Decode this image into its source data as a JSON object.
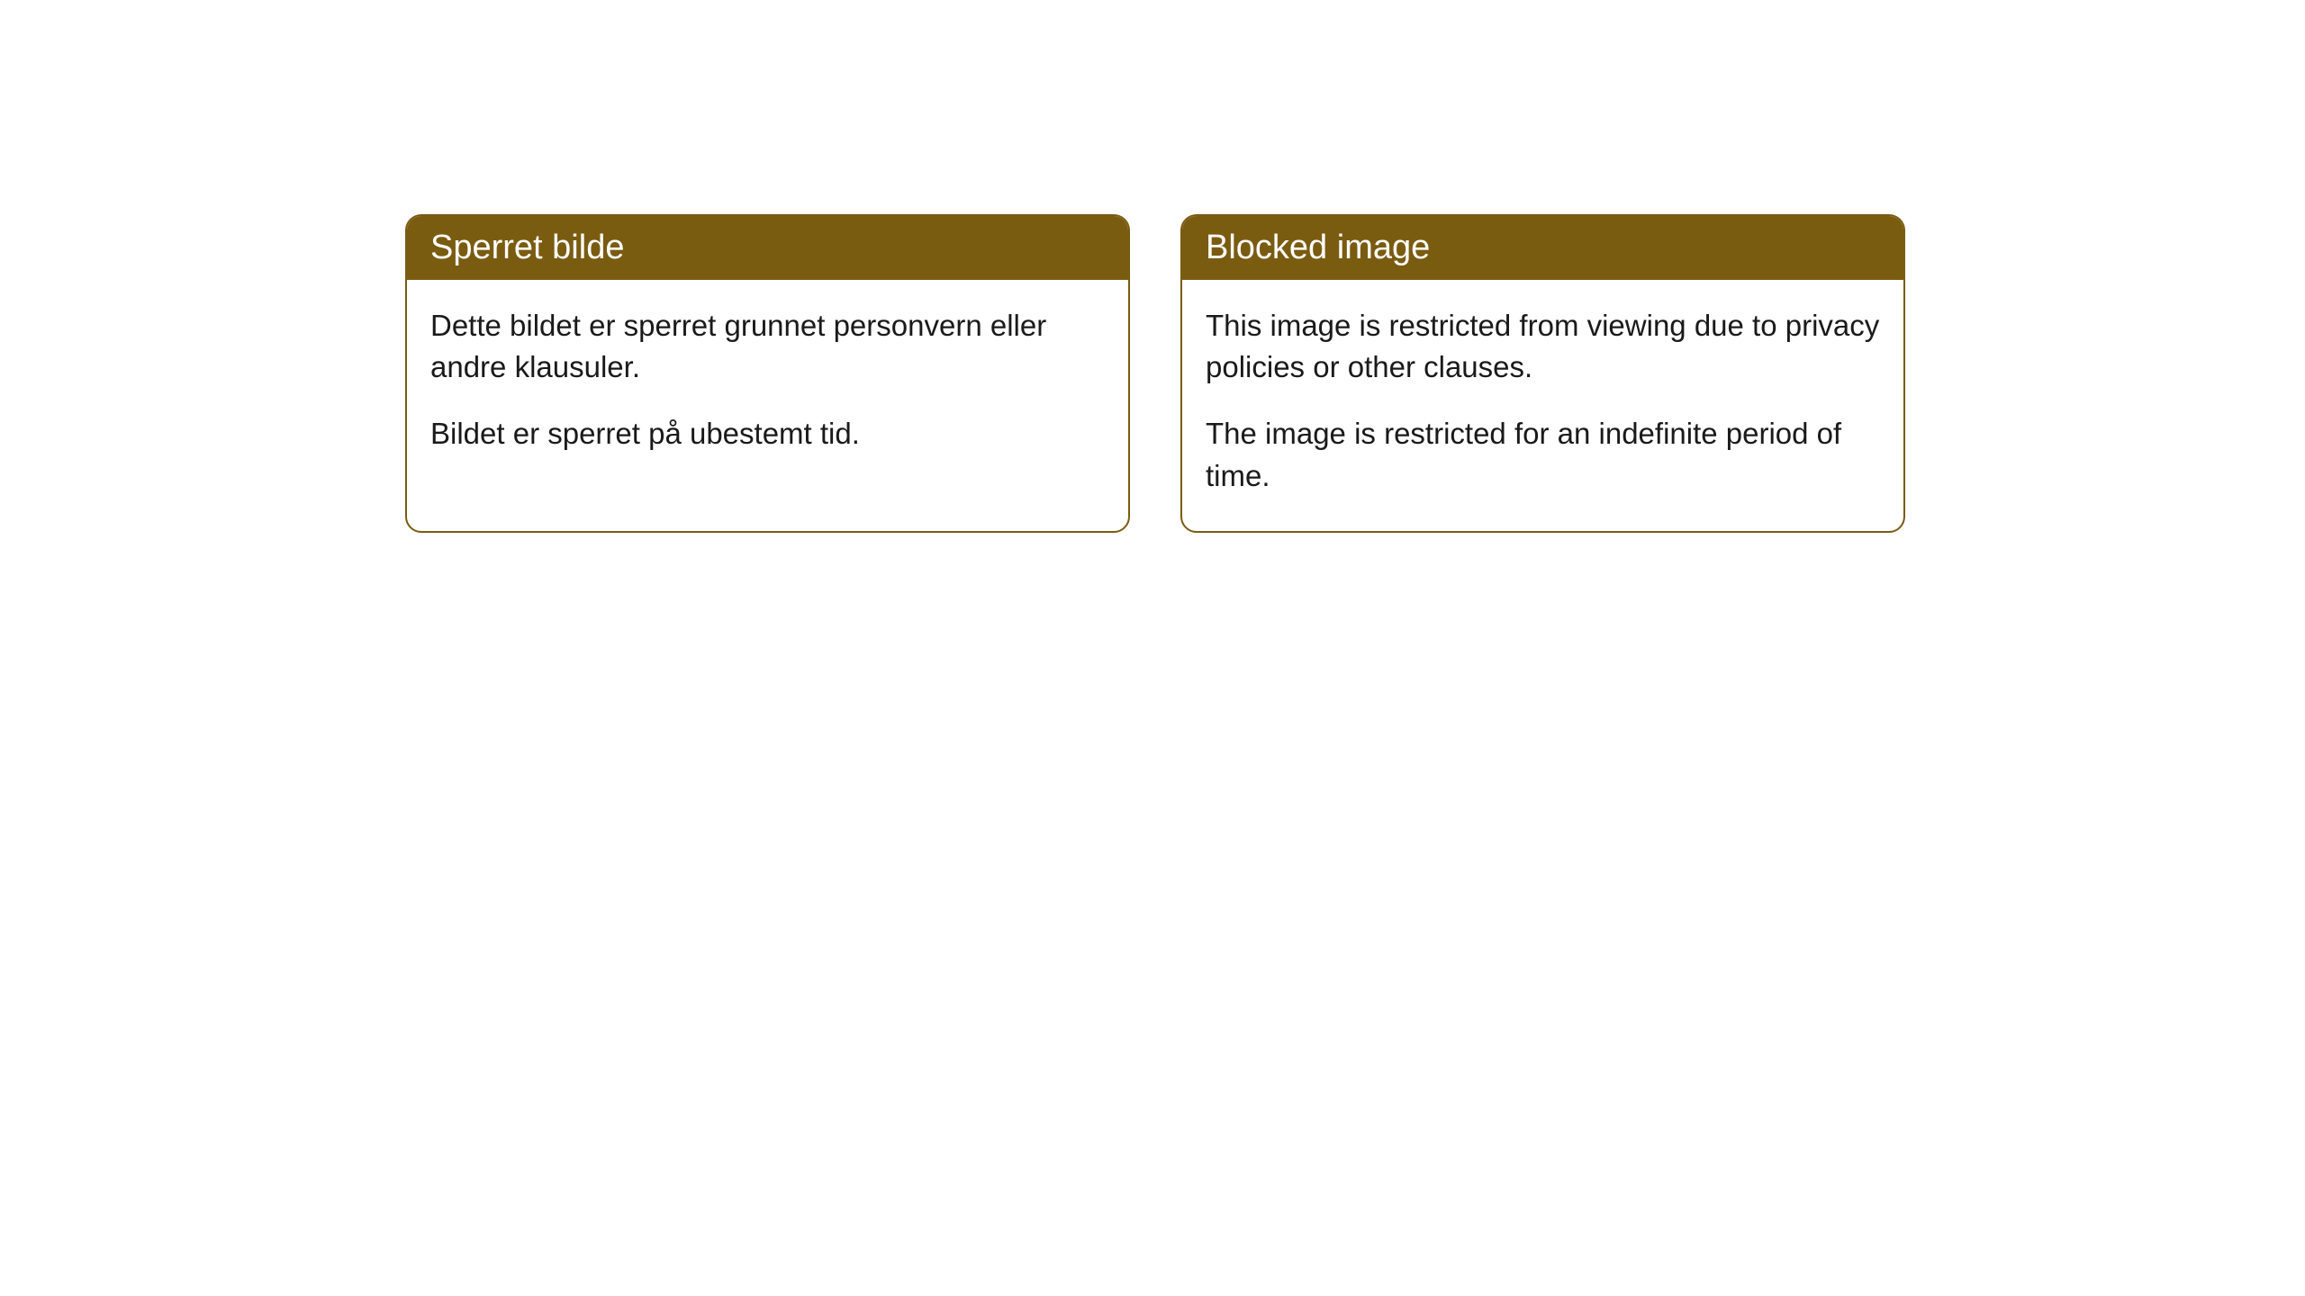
{
  "cards": [
    {
      "title": "Sperret bilde",
      "paragraph1": "Dette bildet er sperret grunnet personvern eller andre klausuler.",
      "paragraph2": "Bildet er sperret på ubestemt tid."
    },
    {
      "title": "Blocked image",
      "paragraph1": "This image is restricted from viewing due to privacy policies or other clauses.",
      "paragraph2": "The image is restricted for an indefinite period of time."
    }
  ],
  "style": {
    "header_bg": "#7a5c11",
    "header_text": "#ffffff",
    "border_color": "#7a5c11",
    "body_bg": "#ffffff",
    "body_text": "#1a1a1a",
    "border_radius": 18,
    "title_fontsize": 38,
    "body_fontsize": 33
  }
}
